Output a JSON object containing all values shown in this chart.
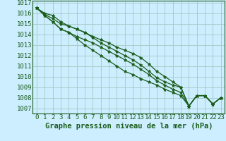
{
  "title": "Graphe pression niveau de la mer (hPa)",
  "background_color": "#cceeff",
  "grid_color": "#aacccc",
  "line_color": "#1a5c1a",
  "marker": "*",
  "xlim": [
    -0.5,
    23.5
  ],
  "ylim": [
    1006.5,
    1017.2
  ],
  "xlabel_fontsize": 6.5,
  "ylabel_fontsize": 6.5,
  "title_fontsize": 7.5,
  "series": [
    [
      1016.5,
      1016.0,
      1015.8,
      1015.2,
      1014.8,
      1014.5,
      1014.2,
      1013.8,
      1013.5,
      1013.2,
      1012.8,
      1012.5,
      1012.2,
      1011.8,
      1011.2,
      1010.5,
      1010.0,
      1009.5,
      1009.0,
      1007.2,
      1008.2,
      1008.2,
      1007.4,
      1008.0
    ],
    [
      1016.5,
      1015.9,
      1015.5,
      1015.0,
      1014.8,
      1014.5,
      1014.2,
      1013.7,
      1013.2,
      1012.8,
      1012.4,
      1012.0,
      1011.6,
      1011.1,
      1010.5,
      1009.9,
      1009.5,
      1009.2,
      1009.0,
      1007.2,
      1008.2,
      1008.2,
      1007.4,
      1008.0
    ],
    [
      1016.5,
      1015.8,
      1015.2,
      1014.5,
      1014.2,
      1013.8,
      1013.5,
      1013.2,
      1012.8,
      1012.4,
      1012.0,
      1011.6,
      1011.2,
      1010.7,
      1010.2,
      1009.6,
      1009.2,
      1008.8,
      1008.5,
      1007.2,
      1008.2,
      1008.2,
      1007.4,
      1008.0
    ],
    [
      1016.5,
      1015.8,
      1015.2,
      1014.5,
      1014.2,
      1013.6,
      1013.0,
      1012.5,
      1012.0,
      1011.5,
      1011.0,
      1010.5,
      1010.2,
      1009.8,
      1009.5,
      1009.2,
      1008.8,
      1008.5,
      1008.2,
      1007.2,
      1008.2,
      1008.2,
      1007.4,
      1008.0
    ]
  ],
  "xtick_labels": [
    "0",
    "1",
    "2",
    "3",
    "4",
    "5",
    "6",
    "7",
    "8",
    "9",
    "10",
    "11",
    "12",
    "13",
    "14",
    "15",
    "16",
    "17",
    "18",
    "19",
    "20",
    "21",
    "22",
    "23"
  ],
  "ytick_values": [
    1007,
    1008,
    1009,
    1010,
    1011,
    1012,
    1013,
    1014,
    1015,
    1016,
    1017
  ]
}
